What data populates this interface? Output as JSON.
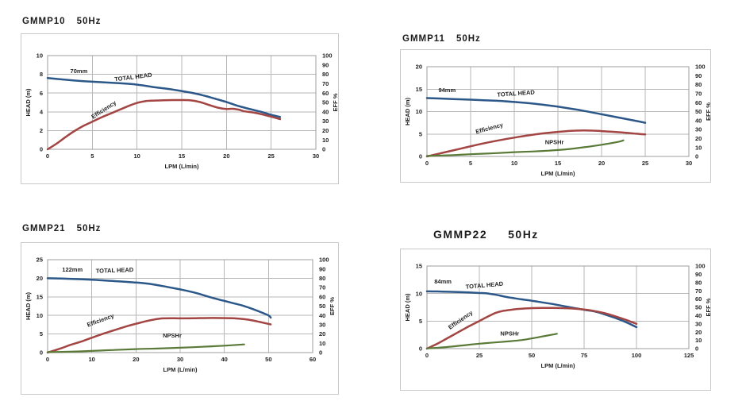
{
  "page": {
    "background": "#ffffff"
  },
  "colors": {
    "total_head": "#2b5789",
    "efficiency": "#a34543",
    "npshr": "#5a7a38",
    "grid": "#b7b7b7",
    "plot_border": "#9e9e9e",
    "text": "#1f1f1f"
  },
  "chart_data": [
    {
      "type": "line",
      "model": "GMMP10",
      "freq": "50Hz",
      "x": {
        "label": "LPM (L/min)",
        "min": 0,
        "max": 30,
        "step": 5
      },
      "y_left": {
        "label": "HEAD (m)",
        "min": 0,
        "max": 10,
        "step": 2
      },
      "y_right": {
        "label": "EFF %",
        "min": 0,
        "max": 100,
        "step": 10
      },
      "series": [
        {
          "name": "TOTAL HEAD",
          "role": "total_head",
          "axis": "left",
          "points": [
            [
              0,
              7.6
            ],
            [
              2,
              7.42
            ],
            [
              4,
              7.27
            ],
            [
              6,
              7.16
            ],
            [
              8,
              7.05
            ],
            [
              10,
              6.9
            ],
            [
              12,
              6.62
            ],
            [
              14,
              6.37
            ],
            [
              16,
              6.05
            ],
            [
              17,
              5.85
            ],
            [
              18,
              5.6
            ],
            [
              19,
              5.32
            ],
            [
              20,
              5.05
            ],
            [
              21,
              4.72
            ],
            [
              22,
              4.45
            ],
            [
              23,
              4.2
            ],
            [
              24,
              3.97
            ],
            [
              25,
              3.68
            ],
            [
              26,
              3.45
            ]
          ]
        },
        {
          "name": "Efficiency",
          "role": "efficiency",
          "axis": "right",
          "points": [
            [
              0,
              0
            ],
            [
              1,
              6
            ],
            [
              2,
              13
            ],
            [
              3,
              19.5
            ],
            [
              4,
              25
            ],
            [
              5,
              29.5
            ],
            [
              6,
              34
            ],
            [
              7,
              38
            ],
            [
              8,
              42
            ],
            [
              9,
              46
            ],
            [
              10,
              49.5
            ],
            [
              11,
              51.5
            ],
            [
              12,
              52
            ],
            [
              13,
              52.3
            ],
            [
              14,
              52.5
            ],
            [
              15,
              52.5
            ],
            [
              16,
              52.2
            ],
            [
              17,
              50.5
            ],
            [
              18,
              47.5
            ],
            [
              19,
              44.5
            ],
            [
              20,
              43
            ],
            [
              20.7,
              43.2
            ],
            [
              21.5,
              42
            ],
            [
              22,
              40.5
            ],
            [
              23,
              39.3
            ],
            [
              24,
              37.3
            ],
            [
              25,
              34.8
            ],
            [
              26,
              32.2
            ]
          ]
        }
      ],
      "labels": [
        {
          "text": "70mm",
          "x": 3.5,
          "y": 8.15,
          "angle": 0
        },
        {
          "text": "TOTAL HEAD",
          "x": 9.6,
          "y": 7.5,
          "angle": -7
        },
        {
          "text": "Efficiency",
          "x": 6.4,
          "y": 4.05,
          "angle": -33
        }
      ]
    },
    {
      "type": "line",
      "model": "GMMP11",
      "freq": "50Hz",
      "x": {
        "label": "LPM (L/min)",
        "min": 0,
        "max": 30,
        "step": 5
      },
      "y_left": {
        "label": "HEAD (m)",
        "min": 0,
        "max": 20,
        "step": 5
      },
      "y_right": {
        "label": "EFF %",
        "min": 0,
        "max": 100,
        "step": 10
      },
      "series": [
        {
          "name": "TOTAL HEAD",
          "role": "total_head",
          "axis": "left",
          "points": [
            [
              0,
              13
            ],
            [
              3,
              12.8
            ],
            [
              5,
              12.65
            ],
            [
              8,
              12.4
            ],
            [
              10,
              12.15
            ],
            [
              12,
              11.8
            ],
            [
              14,
              11.35
            ],
            [
              16,
              10.8
            ],
            [
              18,
              10.15
            ],
            [
              20,
              9.4
            ],
            [
              22,
              8.65
            ],
            [
              24,
              7.9
            ],
            [
              25,
              7.5
            ]
          ]
        },
        {
          "name": "Efficiency",
          "role": "efficiency",
          "axis": "right",
          "points": [
            [
              0,
              0
            ],
            [
              2,
              4.5
            ],
            [
              4,
              9
            ],
            [
              6,
              13.5
            ],
            [
              8,
              17.5
            ],
            [
              10,
              21
            ],
            [
              12,
              24
            ],
            [
              14,
              26.5
            ],
            [
              16,
              28.2
            ],
            [
              17,
              28.8
            ],
            [
              18,
              29
            ],
            [
              19,
              28.8
            ],
            [
              20,
              28.2
            ],
            [
              22,
              27
            ],
            [
              24,
              25.3
            ],
            [
              25,
              24.5
            ]
          ]
        },
        {
          "name": "NPSHr",
          "role": "npshr",
          "axis": "left",
          "points": [
            [
              0,
              0.1
            ],
            [
              3,
              0.3
            ],
            [
              5,
              0.5
            ],
            [
              8,
              0.75
            ],
            [
              10,
              0.95
            ],
            [
              12,
              1.1
            ],
            [
              14,
              1.3
            ],
            [
              16,
              1.6
            ],
            [
              18,
              2.05
            ],
            [
              20,
              2.6
            ],
            [
              22,
              3.3
            ],
            [
              22.5,
              3.6
            ]
          ]
        }
      ],
      "labels": [
        {
          "text": "94mm",
          "x": 2.3,
          "y": 14.3,
          "angle": 0
        },
        {
          "text": "TOTAL HEAD",
          "x": 10.2,
          "y": 13.6,
          "angle": -4
        },
        {
          "text": "Efficiency",
          "x": 7.2,
          "y": 5.85,
          "angle": -15
        },
        {
          "text": "NPSHr",
          "x": 14.6,
          "y": 2.75,
          "angle": 0
        }
      ]
    },
    {
      "type": "line",
      "model": "GMMP21",
      "freq": "50Hz",
      "x": {
        "label": "LPM (L/min)",
        "min": 0,
        "max": 60,
        "step": 10
      },
      "y_left": {
        "label": "HEAD (m)",
        "min": 0,
        "max": 25,
        "step": 5
      },
      "y_right": {
        "label": "EFF %",
        "min": 0,
        "max": 100,
        "step": 10
      },
      "series": [
        {
          "name": "TOTAL HEAD",
          "role": "total_head",
          "axis": "left",
          "points": [
            [
              0,
              20
            ],
            [
              5,
              19.85
            ],
            [
              10,
              19.6
            ],
            [
              15,
              19.25
            ],
            [
              20,
              18.85
            ],
            [
              23,
              18.5
            ],
            [
              26,
              17.9
            ],
            [
              28,
              17.45
            ],
            [
              30,
              17
            ],
            [
              32,
              16.5
            ],
            [
              34,
              15.9
            ],
            [
              36,
              15.2
            ],
            [
              38,
              14.5
            ],
            [
              40,
              13.9
            ],
            [
              42,
              13.3
            ],
            [
              44,
              12.7
            ],
            [
              46,
              11.9
            ],
            [
              48,
              11
            ],
            [
              50,
              10
            ],
            [
              50.5,
              9.4
            ]
          ]
        },
        {
          "name": "Efficiency",
          "role": "efficiency",
          "axis": "right",
          "points": [
            [
              0,
              0
            ],
            [
              3,
              4.5
            ],
            [
              5,
              8
            ],
            [
              8,
              12.5
            ],
            [
              10,
              16
            ],
            [
              13,
              21
            ],
            [
              15,
              24
            ],
            [
              18,
              28.5
            ],
            [
              20,
              31
            ],
            [
              22,
              33.5
            ],
            [
              24,
              35.5
            ],
            [
              26,
              36.8
            ],
            [
              28,
              37
            ],
            [
              30,
              36.8
            ],
            [
              33,
              36.9
            ],
            [
              36,
              37.2
            ],
            [
              39,
              37.2
            ],
            [
              42,
              36.9
            ],
            [
              44,
              36.2
            ],
            [
              46,
              35
            ],
            [
              48,
              33
            ],
            [
              50.5,
              30.3
            ]
          ]
        },
        {
          "name": "NPSHr",
          "role": "npshr",
          "axis": "left",
          "points": [
            [
              0,
              0.1
            ],
            [
              5,
              0.25
            ],
            [
              10,
              0.45
            ],
            [
              15,
              0.7
            ],
            [
              20,
              0.95
            ],
            [
              25,
              1.1
            ],
            [
              30,
              1.3
            ],
            [
              35,
              1.55
            ],
            [
              40,
              1.85
            ],
            [
              44.5,
              2.2
            ]
          ]
        }
      ],
      "labels": [
        {
          "text": "122mm",
          "x": 5.6,
          "y": 21.8,
          "angle": 0
        },
        {
          "text": "TOTAL HEAD",
          "x": 15.2,
          "y": 21.6,
          "angle": -2
        },
        {
          "text": "Efficiency",
          "x": 12.1,
          "y": 8.2,
          "angle": -20
        },
        {
          "text": "NPSHr",
          "x": 28.2,
          "y": 4.1,
          "angle": 0
        }
      ]
    },
    {
      "type": "line",
      "model": "GMMP22",
      "freq": "50Hz",
      "x": {
        "label": "LPM (L/min)",
        "min": 0,
        "max": 125,
        "step": 25
      },
      "y_left": {
        "label": "HEAD (m)",
        "min": 0,
        "max": 15,
        "step": 5
      },
      "y_right": {
        "label": "EFF %",
        "min": 0,
        "max": 100,
        "step": 10
      },
      "series": [
        {
          "name": "TOTAL HEAD",
          "role": "total_head",
          "axis": "left",
          "points": [
            [
              0,
              10.4
            ],
            [
              5,
              10.38
            ],
            [
              10,
              10.33
            ],
            [
              15,
              10.28
            ],
            [
              20,
              10.2
            ],
            [
              25,
              10.1
            ],
            [
              28,
              10.05
            ],
            [
              31,
              9.9
            ],
            [
              34,
              9.7
            ],
            [
              37,
              9.45
            ],
            [
              40,
              9.25
            ],
            [
              45,
              8.95
            ],
            [
              50,
              8.7
            ],
            [
              55,
              8.4
            ],
            [
              60,
              8.1
            ],
            [
              65,
              7.75
            ],
            [
              70,
              7.4
            ],
            [
              75,
              7.05
            ],
            [
              80,
              6.75
            ],
            [
              85,
              6.2
            ],
            [
              90,
              5.55
            ],
            [
              95,
              4.8
            ],
            [
              100,
              3.9
            ]
          ]
        },
        {
          "name": "Efficiency",
          "role": "efficiency",
          "axis": "right",
          "points": [
            [
              0,
              0
            ],
            [
              5,
              6
            ],
            [
              10,
              13
            ],
            [
              15,
              20
            ],
            [
              20,
              27
            ],
            [
              25,
              33.5
            ],
            [
              30,
              40
            ],
            [
              33,
              43.5
            ],
            [
              36,
              45.5
            ],
            [
              40,
              47
            ],
            [
              45,
              48.3
            ],
            [
              50,
              49
            ],
            [
              55,
              49.3
            ],
            [
              60,
              49.3
            ],
            [
              65,
              49
            ],
            [
              70,
              48.5
            ],
            [
              75,
              47.3
            ],
            [
              80,
              45.5
            ],
            [
              85,
              42.8
            ],
            [
              90,
              39
            ],
            [
              95,
              34.8
            ],
            [
              100,
              30
            ]
          ]
        },
        {
          "name": "NPSHr",
          "role": "npshr",
          "axis": "left",
          "points": [
            [
              0,
              0.05
            ],
            [
              5,
              0.15
            ],
            [
              10,
              0.3
            ],
            [
              15,
              0.5
            ],
            [
              20,
              0.7
            ],
            [
              25,
              0.9
            ],
            [
              30,
              1.05
            ],
            [
              35,
              1.2
            ],
            [
              40,
              1.35
            ],
            [
              45,
              1.55
            ],
            [
              50,
              1.85
            ],
            [
              55,
              2.2
            ],
            [
              60,
              2.55
            ],
            [
              62,
              2.7
            ]
          ]
        }
      ],
      "labels": [
        {
          "text": "84mm",
          "x": 7.6,
          "y": 11.85,
          "angle": 0
        },
        {
          "text": "TOTAL HEAD",
          "x": 27.5,
          "y": 11.15,
          "angle": -5
        },
        {
          "text": "Efficiency",
          "x": 16.5,
          "y": 4.9,
          "angle": -35
        },
        {
          "text": "NPSHr",
          "x": 39.5,
          "y": 2.35,
          "angle": 0
        }
      ]
    }
  ]
}
